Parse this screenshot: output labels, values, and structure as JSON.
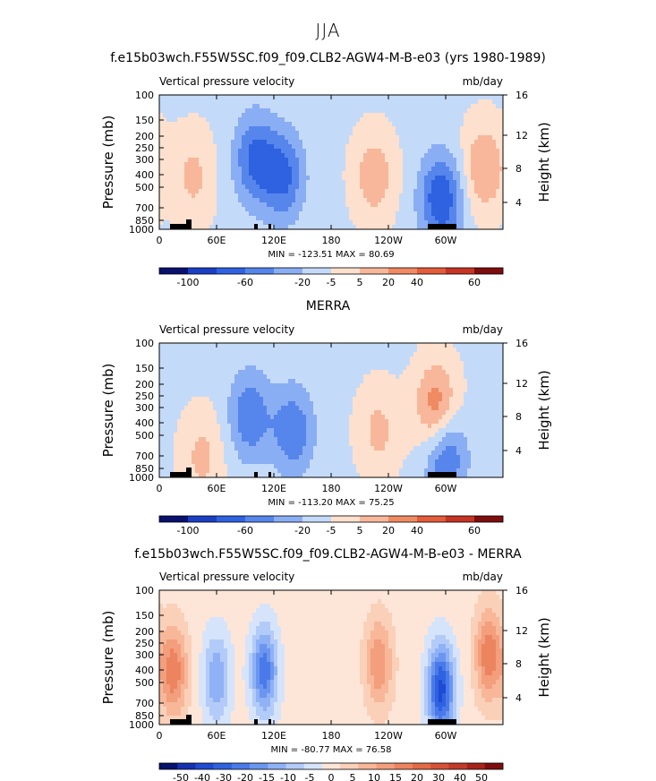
{
  "page_title": "JJA",
  "colors": {
    "scale_11": [
      "#08116e",
      "#1b3fc4",
      "#2f62e0",
      "#5686ec",
      "#8aaef4",
      "#c4daf9",
      "#fde0cd",
      "#f8b79a",
      "#f08a63",
      "#e35c3b",
      "#c53424",
      "#7e0d0e"
    ],
    "scale_21": [
      "#08116e",
      "#1530b0",
      "#1f4ad2",
      "#2f62e0",
      "#4a7ae9",
      "#6a96f0",
      "#8fb1f5",
      "#b3cbf8",
      "#d6e4fb",
      "#fde6d8",
      "#fbd0b8",
      "#f8b799",
      "#f39e7c",
      "#ec845f",
      "#e46a47",
      "#d85136",
      "#c53a27",
      "#a8231a",
      "#7e0d0e"
    ]
  },
  "chart_data": [
    {
      "type": "heatmap",
      "title": "f.e15b03wch.F55W5SC.f09_f09.CLB2-AGW4-M-B-e03 (yrs 1980-1989)",
      "field_label": "Vertical pressure velocity",
      "units": "mb/day",
      "ylabel": "Pressure (mb)",
      "y2label": "Height (km)",
      "x_ticks": [
        "0",
        "60E",
        "120E",
        "180",
        "120W",
        "60W"
      ],
      "y_ticks": [
        "100",
        "150",
        "200",
        "250",
        "300",
        "400",
        "500",
        "700",
        "850",
        "1000"
      ],
      "y2_ticks": [
        "16",
        "12",
        "8",
        "4"
      ],
      "stats": {
        "min_label": "MIN =",
        "min": "-123.51",
        "max_label": "MAX =",
        "max": "80.69"
      },
      "colorbar_labels": [
        "-100",
        "-60",
        "-20",
        "-5",
        "5",
        "20",
        "40",
        "60"
      ],
      "x_range": [
        0,
        360
      ],
      "y_range_mb": [
        1000,
        100
      ],
      "features": [
        {
          "lon": 35,
          "p": 400,
          "value": 20
        },
        {
          "lon": 100,
          "p": 300,
          "value": -40
        },
        {
          "lon": 130,
          "p": 400,
          "value": -40
        },
        {
          "lon": 225,
          "p": 400,
          "value": 25
        },
        {
          "lon": 295,
          "p": 600,
          "value": -50
        },
        {
          "lon": 340,
          "p": 350,
          "value": 30
        }
      ]
    },
    {
      "type": "heatmap",
      "title": "MERRA",
      "field_label": "Vertical pressure velocity",
      "units": "mb/day",
      "ylabel": "Pressure (mb)",
      "y2label": "Height (km)",
      "x_ticks": [
        "0",
        "60E",
        "120E",
        "180",
        "120W",
        "60W"
      ],
      "y_ticks": [
        "100",
        "150",
        "200",
        "250",
        "300",
        "400",
        "500",
        "700",
        "850",
        "1000"
      ],
      "y2_ticks": [
        "16",
        "12",
        "8",
        "4"
      ],
      "stats": {
        "min_label": "MIN =",
        "min": "-113.20",
        "max_label": "MAX =",
        "max": "75.25"
      },
      "colorbar_labels": [
        "-100",
        "-60",
        "-20",
        "-5",
        "5",
        "20",
        "40",
        "60"
      ],
      "x_range": [
        0,
        360
      ],
      "y_range_mb": [
        1000,
        100
      ],
      "features": [
        {
          "lon": 45,
          "p": 700,
          "value": 20
        },
        {
          "lon": 95,
          "p": 350,
          "value": -35
        },
        {
          "lon": 140,
          "p": 450,
          "value": -35
        },
        {
          "lon": 230,
          "p": 450,
          "value": 20
        },
        {
          "lon": 290,
          "p": 300,
          "value": 40
        },
        {
          "lon": 300,
          "p": 700,
          "value": -40
        }
      ]
    },
    {
      "type": "heatmap",
      "title": "f.e15b03wch.F55W5SC.f09_f09.CLB2-AGW4-M-B-e03 - MERRA",
      "field_label": "Vertical pressure velocity",
      "units": "mb/day",
      "ylabel": "Pressure (mb)",
      "y2label": "Height (km)",
      "x_ticks": [
        "0",
        "60E",
        "120E",
        "180",
        "120W",
        "60W"
      ],
      "y_ticks": [
        "100",
        "150",
        "200",
        "250",
        "300",
        "400",
        "500",
        "700",
        "850",
        "1000"
      ],
      "y2_ticks": [
        "16",
        "12",
        "8",
        "4"
      ],
      "stats": {
        "min_label": "MIN =",
        "min": "-80.77",
        "max_label": "MAX =",
        "max": "76.58"
      },
      "colorbar_labels": [
        "-50",
        "-40",
        "-30",
        "-20",
        "-15",
        "-10",
        "-5",
        "0",
        "5",
        "10",
        "15",
        "20",
        "30",
        "40",
        "50"
      ],
      "x_range": [
        0,
        360
      ],
      "y_range_mb": [
        1000,
        100
      ],
      "features": [
        {
          "lon": 15,
          "p": 400,
          "value": 25
        },
        {
          "lon": 60,
          "p": 450,
          "value": -20
        },
        {
          "lon": 110,
          "p": 400,
          "value": -30
        },
        {
          "lon": 230,
          "p": 350,
          "value": 20
        },
        {
          "lon": 295,
          "p": 550,
          "value": -40
        },
        {
          "lon": 345,
          "p": 300,
          "value": 25
        }
      ]
    }
  ]
}
